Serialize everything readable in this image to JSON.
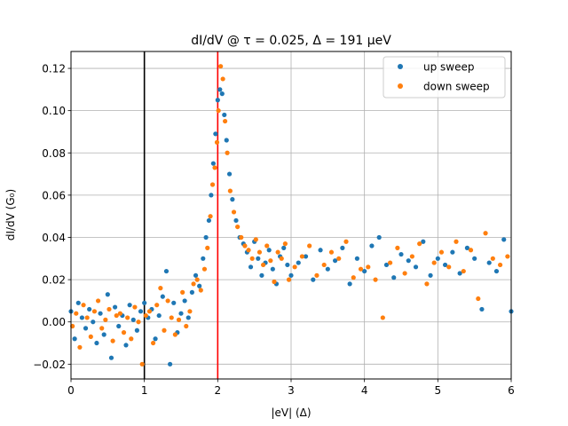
{
  "chart_data": {
    "type": "scatter",
    "title": "dI/dV @ τ = 0.025, Δ = 191 μeV",
    "xlabel": "|eV| (Δ)",
    "ylabel": "dI/dV (G₀)",
    "xlim": [
      0,
      6
    ],
    "ylim": [
      -0.027,
      0.128
    ],
    "xticks": [
      0,
      1,
      2,
      3,
      4,
      5,
      6
    ],
    "xtick_labels": [
      "0",
      "1",
      "2",
      "3",
      "4",
      "5",
      "6"
    ],
    "yticks": [
      -0.02,
      0.0,
      0.02,
      0.04,
      0.06,
      0.08,
      0.1,
      0.12
    ],
    "ytick_labels": [
      "−0.02",
      "0.00",
      "0.02",
      "0.04",
      "0.06",
      "0.08",
      "0.10",
      "0.12"
    ],
    "grid": true,
    "legend_position": "top-right",
    "vlines": [
      {
        "x": 1.0,
        "color": "#000000"
      },
      {
        "x": 2.0,
        "color": "#ff0000"
      }
    ],
    "series": [
      {
        "name": "up sweep",
        "color": "#1f77b4",
        "x": [
          0.0,
          0.05,
          0.1,
          0.15,
          0.2,
          0.25,
          0.3,
          0.35,
          0.4,
          0.45,
          0.5,
          0.55,
          0.6,
          0.65,
          0.7,
          0.75,
          0.8,
          0.85,
          0.9,
          0.95,
          1.0,
          1.05,
          1.1,
          1.15,
          1.2,
          1.25,
          1.3,
          1.35,
          1.4,
          1.45,
          1.5,
          1.55,
          1.6,
          1.65,
          1.7,
          1.75,
          1.8,
          1.84,
          1.88,
          1.91,
          1.94,
          1.97,
          2.0,
          2.03,
          2.06,
          2.09,
          2.12,
          2.16,
          2.2,
          2.25,
          2.3,
          2.35,
          2.4,
          2.45,
          2.5,
          2.55,
          2.6,
          2.65,
          2.7,
          2.75,
          2.8,
          2.85,
          2.9,
          2.95,
          3.0,
          3.1,
          3.2,
          3.3,
          3.4,
          3.5,
          3.6,
          3.7,
          3.8,
          3.9,
          4.0,
          4.1,
          4.2,
          4.3,
          4.4,
          4.5,
          4.6,
          4.7,
          4.8,
          4.9,
          5.0,
          5.1,
          5.2,
          5.3,
          5.4,
          5.5,
          5.6,
          5.7,
          5.8,
          5.9,
          6.0
        ],
        "y": [
          0.005,
          -0.008,
          0.009,
          0.002,
          -0.003,
          0.006,
          0.0,
          -0.01,
          0.004,
          -0.006,
          0.013,
          -0.017,
          0.007,
          -0.002,
          0.003,
          -0.011,
          0.008,
          0.001,
          -0.004,
          0.005,
          0.009,
          0.002,
          0.006,
          -0.008,
          0.003,
          0.012,
          0.024,
          -0.02,
          0.009,
          -0.005,
          0.004,
          0.01,
          0.002,
          0.014,
          0.022,
          0.017,
          0.03,
          0.04,
          0.048,
          0.06,
          0.075,
          0.089,
          0.105,
          0.11,
          0.108,
          0.098,
          0.086,
          0.07,
          0.058,
          0.048,
          0.04,
          0.037,
          0.033,
          0.026,
          0.038,
          0.03,
          0.022,
          0.028,
          0.034,
          0.025,
          0.018,
          0.031,
          0.035,
          0.027,
          0.022,
          0.028,
          0.031,
          0.02,
          0.034,
          0.025,
          0.029,
          0.035,
          0.018,
          0.03,
          0.024,
          0.036,
          0.04,
          0.027,
          0.021,
          0.032,
          0.029,
          0.026,
          0.038,
          0.022,
          0.03,
          0.027,
          0.033,
          0.023,
          0.035,
          0.03,
          0.006,
          0.028,
          0.024,
          0.039,
          0.005
        ]
      },
      {
        "name": "down sweep",
        "color": "#ff7f0e",
        "x": [
          0.02,
          0.07,
          0.12,
          0.17,
          0.22,
          0.27,
          0.32,
          0.37,
          0.42,
          0.47,
          0.52,
          0.57,
          0.62,
          0.67,
          0.72,
          0.77,
          0.82,
          0.87,
          0.92,
          0.97,
          1.02,
          1.07,
          1.12,
          1.17,
          1.22,
          1.27,
          1.32,
          1.37,
          1.42,
          1.47,
          1.52,
          1.57,
          1.62,
          1.67,
          1.72,
          1.77,
          1.82,
          1.86,
          1.9,
          1.93,
          1.96,
          1.99,
          2.01,
          2.04,
          2.07,
          2.1,
          2.13,
          2.17,
          2.22,
          2.27,
          2.32,
          2.37,
          2.42,
          2.47,
          2.52,
          2.57,
          2.62,
          2.67,
          2.72,
          2.77,
          2.82,
          2.87,
          2.92,
          2.97,
          3.05,
          3.15,
          3.25,
          3.35,
          3.45,
          3.55,
          3.65,
          3.75,
          3.85,
          3.95,
          4.05,
          4.15,
          4.25,
          4.35,
          4.45,
          4.55,
          4.65,
          4.75,
          4.85,
          4.95,
          5.05,
          5.15,
          5.25,
          5.35,
          5.45,
          5.55,
          5.65,
          5.75,
          5.85,
          5.95
        ],
        "y": [
          -0.002,
          0.004,
          -0.012,
          0.008,
          0.002,
          -0.007,
          0.005,
          0.01,
          -0.003,
          0.001,
          0.006,
          -0.009,
          0.003,
          0.004,
          -0.005,
          0.002,
          -0.008,
          0.007,
          0.0,
          -0.02,
          0.003,
          0.005,
          -0.01,
          0.008,
          0.016,
          -0.004,
          0.01,
          0.002,
          -0.006,
          0.001,
          0.014,
          -0.002,
          0.005,
          0.018,
          0.02,
          0.015,
          0.025,
          0.035,
          0.05,
          0.065,
          0.073,
          0.085,
          0.1,
          0.121,
          0.115,
          0.095,
          0.08,
          0.062,
          0.052,
          0.045,
          0.04,
          0.036,
          0.034,
          0.03,
          0.039,
          0.033,
          0.027,
          0.036,
          0.029,
          0.019,
          0.033,
          0.03,
          0.037,
          0.02,
          0.026,
          0.031,
          0.036,
          0.022,
          0.027,
          0.033,
          0.03,
          0.038,
          0.021,
          0.025,
          0.026,
          0.02,
          0.002,
          0.028,
          0.035,
          0.023,
          0.031,
          0.037,
          0.018,
          0.028,
          0.033,
          0.026,
          0.038,
          0.024,
          0.034,
          0.011,
          0.042,
          0.03,
          0.027,
          0.031
        ]
      }
    ]
  }
}
